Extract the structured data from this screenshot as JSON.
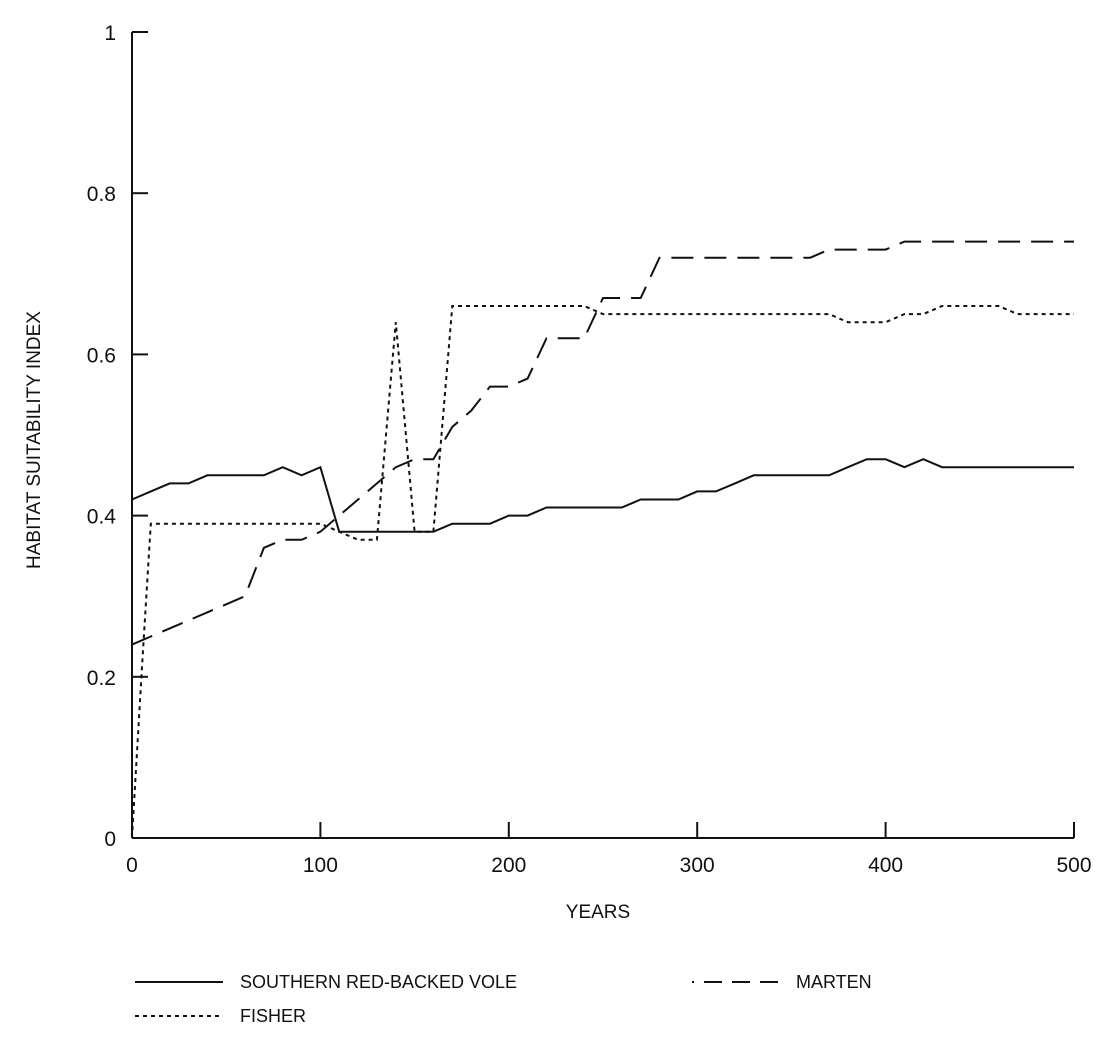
{
  "chart_data": {
    "type": "line",
    "title": "",
    "xlabel": "YEARS",
    "ylabel": "HABITAT SUITABILITY INDEX",
    "xlim": [
      0,
      500
    ],
    "ylim": [
      0,
      1
    ],
    "x_ticks": [
      0,
      100,
      200,
      300,
      400,
      500
    ],
    "y_ticks": [
      0,
      0.2,
      0.4,
      0.6,
      0.8,
      1
    ],
    "y_tick_labels": [
      "0",
      "0.2",
      "0.4",
      "0.6",
      "0.8",
      "1"
    ],
    "grid": false,
    "legend_position": "bottom",
    "series": [
      {
        "name": "SOUTHERN RED-BACKED VOLE",
        "style": "solid",
        "color": "#111111",
        "points": [
          [
            0,
            0.42
          ],
          [
            10,
            0.43
          ],
          [
            20,
            0.44
          ],
          [
            30,
            0.44
          ],
          [
            40,
            0.45
          ],
          [
            50,
            0.45
          ],
          [
            60,
            0.45
          ],
          [
            70,
            0.45
          ],
          [
            80,
            0.46
          ],
          [
            90,
            0.45
          ],
          [
            100,
            0.46
          ],
          [
            110,
            0.38
          ],
          [
            120,
            0.38
          ],
          [
            130,
            0.38
          ],
          [
            140,
            0.38
          ],
          [
            150,
            0.38
          ],
          [
            160,
            0.38
          ],
          [
            170,
            0.39
          ],
          [
            180,
            0.39
          ],
          [
            190,
            0.39
          ],
          [
            200,
            0.4
          ],
          [
            210,
            0.4
          ],
          [
            220,
            0.41
          ],
          [
            230,
            0.41
          ],
          [
            240,
            0.41
          ],
          [
            250,
            0.41
          ],
          [
            260,
            0.41
          ],
          [
            270,
            0.42
          ],
          [
            280,
            0.42
          ],
          [
            290,
            0.42
          ],
          [
            300,
            0.43
          ],
          [
            310,
            0.43
          ],
          [
            320,
            0.44
          ],
          [
            330,
            0.45
          ],
          [
            340,
            0.45
          ],
          [
            350,
            0.45
          ],
          [
            360,
            0.45
          ],
          [
            370,
            0.45
          ],
          [
            380,
            0.46
          ],
          [
            390,
            0.47
          ],
          [
            400,
            0.47
          ],
          [
            410,
            0.46
          ],
          [
            420,
            0.47
          ],
          [
            430,
            0.46
          ],
          [
            440,
            0.46
          ],
          [
            450,
            0.46
          ],
          [
            460,
            0.46
          ],
          [
            470,
            0.46
          ],
          [
            480,
            0.46
          ],
          [
            490,
            0.46
          ],
          [
            500,
            0.46
          ]
        ]
      },
      {
        "name": "MARTEN",
        "style": "dashed",
        "color": "#111111",
        "points": [
          [
            0,
            0.24
          ],
          [
            10,
            0.25
          ],
          [
            20,
            0.26
          ],
          [
            30,
            0.27
          ],
          [
            40,
            0.28
          ],
          [
            50,
            0.29
          ],
          [
            60,
            0.3
          ],
          [
            70,
            0.36
          ],
          [
            80,
            0.37
          ],
          [
            90,
            0.37
          ],
          [
            100,
            0.38
          ],
          [
            110,
            0.4
          ],
          [
            120,
            0.42
          ],
          [
            130,
            0.44
          ],
          [
            140,
            0.46
          ],
          [
            150,
            0.47
          ],
          [
            160,
            0.47
          ],
          [
            170,
            0.51
          ],
          [
            180,
            0.53
          ],
          [
            190,
            0.56
          ],
          [
            200,
            0.56
          ],
          [
            210,
            0.57
          ],
          [
            220,
            0.62
          ],
          [
            230,
            0.62
          ],
          [
            240,
            0.62
          ],
          [
            250,
            0.67
          ],
          [
            260,
            0.67
          ],
          [
            270,
            0.67
          ],
          [
            280,
            0.72
          ],
          [
            290,
            0.72
          ],
          [
            300,
            0.72
          ],
          [
            310,
            0.72
          ],
          [
            320,
            0.72
          ],
          [
            330,
            0.72
          ],
          [
            340,
            0.72
          ],
          [
            350,
            0.72
          ],
          [
            360,
            0.72
          ],
          [
            370,
            0.73
          ],
          [
            380,
            0.73
          ],
          [
            390,
            0.73
          ],
          [
            400,
            0.73
          ],
          [
            410,
            0.74
          ],
          [
            420,
            0.74
          ],
          [
            430,
            0.74
          ],
          [
            440,
            0.74
          ],
          [
            450,
            0.74
          ],
          [
            460,
            0.74
          ],
          [
            470,
            0.74
          ],
          [
            480,
            0.74
          ],
          [
            490,
            0.74
          ],
          [
            500,
            0.74
          ]
        ]
      },
      {
        "name": "FISHER",
        "style": "dotted",
        "color": "#111111",
        "points": [
          [
            0,
            0
          ],
          [
            5,
            0.2
          ],
          [
            10,
            0.39
          ],
          [
            20,
            0.39
          ],
          [
            30,
            0.39
          ],
          [
            40,
            0.39
          ],
          [
            50,
            0.39
          ],
          [
            60,
            0.39
          ],
          [
            70,
            0.39
          ],
          [
            80,
            0.39
          ],
          [
            90,
            0.39
          ],
          [
            100,
            0.39
          ],
          [
            110,
            0.38
          ],
          [
            120,
            0.37
          ],
          [
            130,
            0.37
          ],
          [
            140,
            0.64
          ],
          [
            150,
            0.38
          ],
          [
            160,
            0.38
          ],
          [
            170,
            0.66
          ],
          [
            180,
            0.66
          ],
          [
            190,
            0.66
          ],
          [
            200,
            0.66
          ],
          [
            210,
            0.66
          ],
          [
            220,
            0.66
          ],
          [
            230,
            0.66
          ],
          [
            240,
            0.66
          ],
          [
            250,
            0.65
          ],
          [
            260,
            0.65
          ],
          [
            270,
            0.65
          ],
          [
            280,
            0.65
          ],
          [
            290,
            0.65
          ],
          [
            300,
            0.65
          ],
          [
            310,
            0.65
          ],
          [
            320,
            0.65
          ],
          [
            330,
            0.65
          ],
          [
            340,
            0.65
          ],
          [
            350,
            0.65
          ],
          [
            360,
            0.65
          ],
          [
            370,
            0.65
          ],
          [
            380,
            0.64
          ],
          [
            390,
            0.64
          ],
          [
            400,
            0.64
          ],
          [
            410,
            0.65
          ],
          [
            420,
            0.65
          ],
          [
            430,
            0.66
          ],
          [
            440,
            0.66
          ],
          [
            450,
            0.66
          ],
          [
            460,
            0.66
          ],
          [
            470,
            0.65
          ],
          [
            480,
            0.65
          ],
          [
            490,
            0.65
          ],
          [
            500,
            0.65
          ]
        ]
      }
    ]
  }
}
